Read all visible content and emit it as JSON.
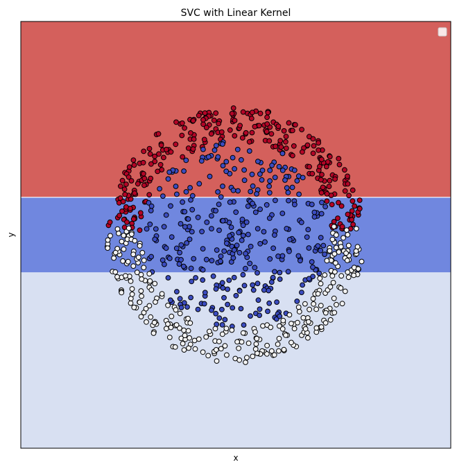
{
  "chart_data": {
    "type": "scatter",
    "title": "SVC with Linear Kernel",
    "xlabel": "x",
    "ylabel": "y",
    "xlim": [
      -2.5,
      2.5
    ],
    "ylim": [
      -2.5,
      2.5
    ],
    "grid": false,
    "legend": "top-right",
    "ticks": "none",
    "decision_regions": [
      {
        "class": "red",
        "y_min": 0.44,
        "y_max": 2.5,
        "color": "#d4605c"
      },
      {
        "class": "blue",
        "y_min": -0.44,
        "y_max": 0.44,
        "color": "#7087df"
      },
      {
        "class": "white",
        "y_min": -2.5,
        "y_max": -0.44,
        "color": "#d8e0f2"
      }
    ],
    "series": [
      {
        "class": "red",
        "color": "#b40426",
        "region": "annulus upper band",
        "radius_range": [
          1.1,
          1.5
        ],
        "y_range": [
          0.05,
          1.5
        ],
        "count": 280
      },
      {
        "class": "blue",
        "color": "#3b4cc0",
        "region": "inner disk",
        "radius_range": [
          0.0,
          1.1
        ],
        "y_range": [
          -1.1,
          1.1
        ],
        "count": 330
      },
      {
        "class": "white",
        "color": "#f2f2f2",
        "region": "annulus lower band",
        "radius_range": [
          1.1,
          1.5
        ],
        "y_range": [
          -1.5,
          0.1
        ],
        "count": 300
      }
    ],
    "colors": {
      "edge": "#000000"
    }
  }
}
